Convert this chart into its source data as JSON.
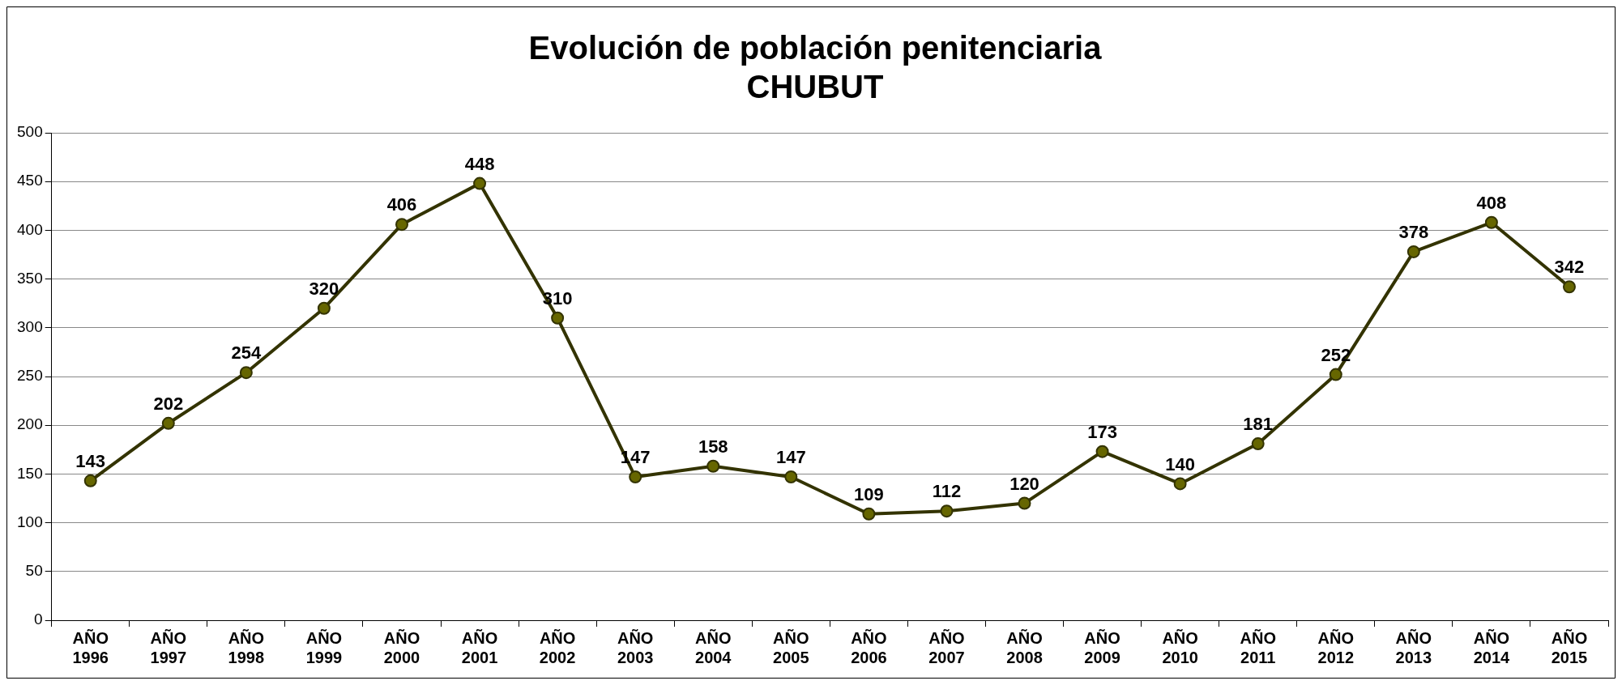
{
  "chart_data": {
    "type": "line",
    "title": "Evolución de población penitenciaria\nCHUBUT",
    "categories": [
      "AÑO 1996",
      "AÑO 1997",
      "AÑO 1998",
      "AÑO 1999",
      "AÑO 2000",
      "AÑO 2001",
      "AÑO 2002",
      "AÑO 2003",
      "AÑO 2004",
      "AÑO 2005",
      "AÑO 2006",
      "AÑO 2007",
      "AÑO 2008",
      "AÑO 2009",
      "AÑO 2010",
      "AÑO 2011",
      "AÑO 2012",
      "AÑO 2013",
      "AÑO 2014",
      "AÑO 2015"
    ],
    "series": [
      {
        "color": "#333300",
        "values": [
          143,
          202,
          254,
          320,
          406,
          448,
          310,
          147,
          158,
          147,
          109,
          112,
          120,
          173,
          140,
          181,
          252,
          378,
          408,
          342
        ]
      }
    ],
    "ylim": [
      0,
      500
    ],
    "yticks": [
      0,
      50,
      100,
      150,
      200,
      250,
      300,
      350,
      400,
      450,
      500
    ],
    "grid": "y",
    "legend": false,
    "marker": "circle",
    "line_style": "solid",
    "data_labels": true
  }
}
